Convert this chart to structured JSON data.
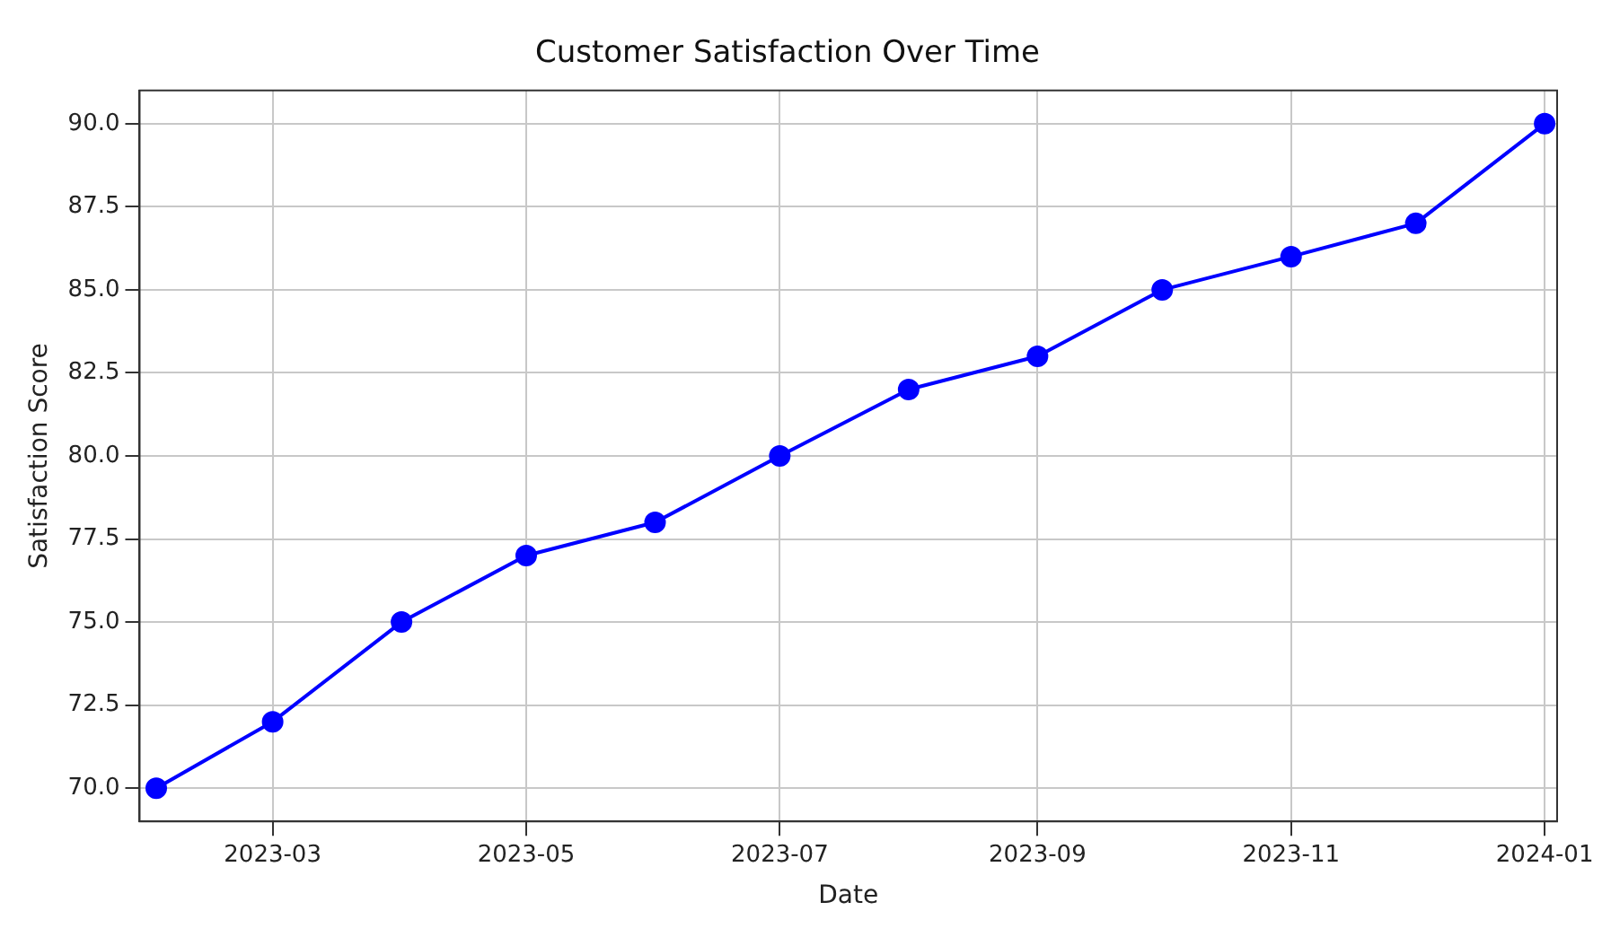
{
  "chart_data": {
    "type": "line",
    "title": "Customer Satisfaction Over Time",
    "xlabel": "Date",
    "ylabel": "Satisfaction Score",
    "x": [
      "2023-02-01",
      "2023-03-01",
      "2023-04-01",
      "2023-05-01",
      "2023-06-01",
      "2023-07-01",
      "2023-08-01",
      "2023-09-01",
      "2023-10-01",
      "2023-11-01",
      "2023-12-01",
      "2024-01-01"
    ],
    "series": [
      {
        "color": "#0000ff",
        "values": [
          70,
          72,
          75,
          77,
          78,
          80,
          82,
          83,
          85,
          86,
          87,
          90
        ]
      }
    ],
    "xlim": [
      "2023-01-28",
      "2024-01-04"
    ],
    "xticks": [
      "2023-03",
      "2023-05",
      "2023-07",
      "2023-09",
      "2023-11",
      "2024-01"
    ],
    "ylim": [
      69,
      91
    ],
    "yticks": [
      {
        "value": 70,
        "label": "70.0"
      },
      {
        "value": 72.5,
        "label": "72.5"
      },
      {
        "value": 75,
        "label": "75.0"
      },
      {
        "value": 77.5,
        "label": "77.5"
      },
      {
        "value": 80,
        "label": "80.0"
      },
      {
        "value": 82.5,
        "label": "82.5"
      },
      {
        "value": 85,
        "label": "85.0"
      },
      {
        "value": 87.5,
        "label": "87.5"
      },
      {
        "value": 90,
        "label": "90.0"
      }
    ],
    "grid": true,
    "marker": "circle",
    "line_style": "solid",
    "legend": false
  }
}
